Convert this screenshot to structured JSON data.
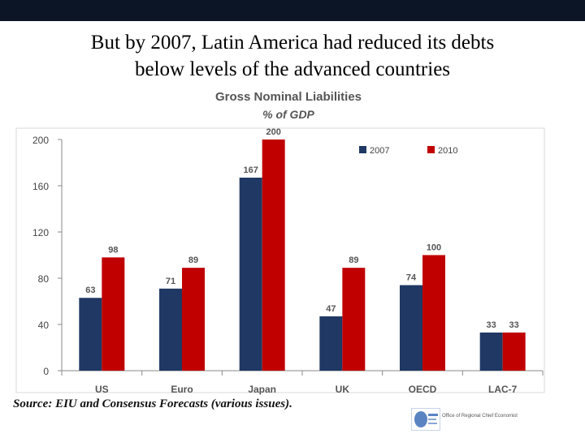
{
  "slide": {
    "title_line1": "But by 2007, Latin America had reduced its debts",
    "title_line2": "below levels of the advanced countries",
    "source": "Source: EIU and Consensus Forecasts (various issues).",
    "footer_text": "Office of Regional Chief Economist"
  },
  "chart_data": {
    "type": "bar",
    "title": "Gross Nominal Liabilities",
    "subtitle": "% of GDP",
    "categories": [
      "US",
      "Euro",
      "Japan",
      "UK",
      "OECD",
      "LAC-7"
    ],
    "series": [
      {
        "name": "2007",
        "color": "#1f3864",
        "values": [
          63,
          71,
          167,
          47,
          74,
          33
        ]
      },
      {
        "name": "2010",
        "color": "#c00000",
        "values": [
          98,
          89,
          200,
          89,
          100,
          33
        ]
      }
    ],
    "ylim": [
      0,
      200
    ],
    "yticks": [
      0,
      40,
      80,
      120,
      160,
      200
    ],
    "legend_position": "top-right",
    "grid": false,
    "show_data_labels": true
  }
}
